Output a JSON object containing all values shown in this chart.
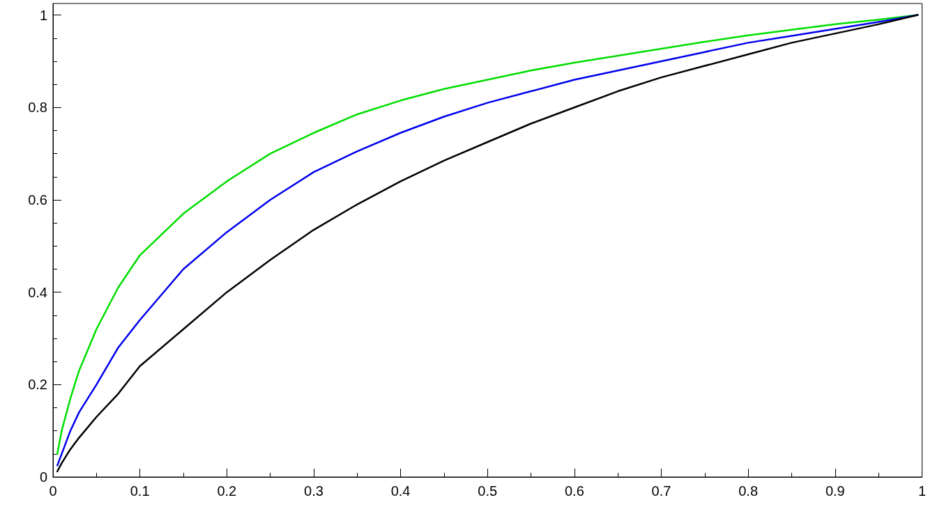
{
  "chart_data": {
    "type": "line",
    "xlim": [
      0,
      1
    ],
    "ylim": [
      0,
      1.025
    ],
    "xticks": [
      0,
      0.1,
      0.2,
      0.3,
      0.4,
      0.5,
      0.6,
      0.7,
      0.8,
      0.9,
      1
    ],
    "yticks": [
      0,
      0.2,
      0.4,
      0.6,
      0.8,
      1
    ],
    "grid": false,
    "marker": "none",
    "line_style": "solid",
    "series": [
      {
        "color": "#00dd00",
        "x": [
          0.005,
          0.01,
          0.02,
          0.03,
          0.05,
          0.075,
          0.1,
          0.15,
          0.2,
          0.25,
          0.3,
          0.35,
          0.4,
          0.45,
          0.5,
          0.55,
          0.6,
          0.65,
          0.7,
          0.75,
          0.8,
          0.85,
          0.9,
          0.95,
          0.995
        ],
        "values": [
          0.05,
          0.1,
          0.17,
          0.23,
          0.32,
          0.41,
          0.48,
          0.57,
          0.64,
          0.7,
          0.745,
          0.785,
          0.815,
          0.84,
          0.86,
          0.88,
          0.897,
          0.912,
          0.927,
          0.942,
          0.956,
          0.968,
          0.98,
          0.99,
          1.0
        ]
      },
      {
        "color": "#0000ee",
        "x": [
          0.005,
          0.01,
          0.02,
          0.03,
          0.05,
          0.075,
          0.1,
          0.15,
          0.2,
          0.25,
          0.3,
          0.35,
          0.4,
          0.45,
          0.5,
          0.55,
          0.6,
          0.65,
          0.7,
          0.75,
          0.8,
          0.85,
          0.9,
          0.95,
          0.995
        ],
        "values": [
          0.025,
          0.05,
          0.1,
          0.14,
          0.2,
          0.28,
          0.34,
          0.45,
          0.53,
          0.6,
          0.66,
          0.705,
          0.745,
          0.78,
          0.81,
          0.835,
          0.86,
          0.88,
          0.9,
          0.92,
          0.94,
          0.955,
          0.97,
          0.985,
          1.0
        ]
      },
      {
        "color": "#000000",
        "x": [
          0.005,
          0.01,
          0.02,
          0.03,
          0.05,
          0.075,
          0.1,
          0.15,
          0.2,
          0.25,
          0.3,
          0.35,
          0.4,
          0.45,
          0.5,
          0.55,
          0.6,
          0.65,
          0.7,
          0.75,
          0.8,
          0.85,
          0.9,
          0.95,
          0.995
        ],
        "values": [
          0.012,
          0.03,
          0.06,
          0.085,
          0.13,
          0.18,
          0.24,
          0.32,
          0.4,
          0.47,
          0.535,
          0.59,
          0.64,
          0.685,
          0.725,
          0.765,
          0.8,
          0.835,
          0.865,
          0.89,
          0.915,
          0.94,
          0.96,
          0.98,
          1.0
        ]
      }
    ]
  }
}
